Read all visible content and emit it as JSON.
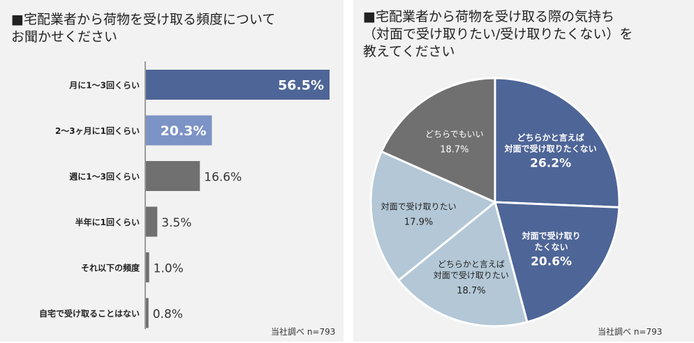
{
  "chart_data": [
    {
      "type": "bar",
      "orientation": "horizontal",
      "title": "■宅配業者から荷物を受け取る頻度について\nお聞かせください",
      "categories": [
        "月に1～3回くらい",
        "2～3ヶ月に1回くらい",
        "週に1～3回くらい",
        "半年に1回くらい",
        "それ以下の頻度",
        "自宅で受け取ることはない"
      ],
      "values": [
        56.5,
        20.3,
        16.6,
        3.5,
        1.0,
        0.8
      ],
      "labels": [
        "56.5%",
        "20.3%",
        "16.6%",
        "3.5%",
        "1.0%",
        "0.8%"
      ],
      "colors": [
        "#4e6597",
        "#7c93c6",
        "#707070",
        "#707070",
        "#707070",
        "#707070"
      ],
      "note": "当社調べ n=793"
    },
    {
      "type": "pie",
      "title": "■宅配業者から荷物を受け取る際の気持ち\n（対面で受け取りたい/受け取りたくない）を\n教えてください",
      "slices": [
        {
          "label": "どちらかと言えば\n対面で受け取りたくない",
          "pct_label": "26.2%",
          "value": 26.2,
          "color": "#4e6597"
        },
        {
          "label": "対面で受け取り\nたくない",
          "pct_label": "20.6%",
          "value": 20.6,
          "color": "#4e6597"
        },
        {
          "label": "どちらかと言えば\n対面で受け取りたい",
          "pct_label": "18.7%",
          "value": 18.7,
          "color": "#b3c7d6"
        },
        {
          "label": "対面で受け取りたい",
          "pct_label": "17.9%",
          "value": 17.9,
          "color": "#b3c7d6"
        },
        {
          "label": "どちらでもいい",
          "pct_label": "18.7%",
          "value": 18.7,
          "color": "#707070"
        }
      ],
      "note": "当社調べ n=793"
    }
  ]
}
